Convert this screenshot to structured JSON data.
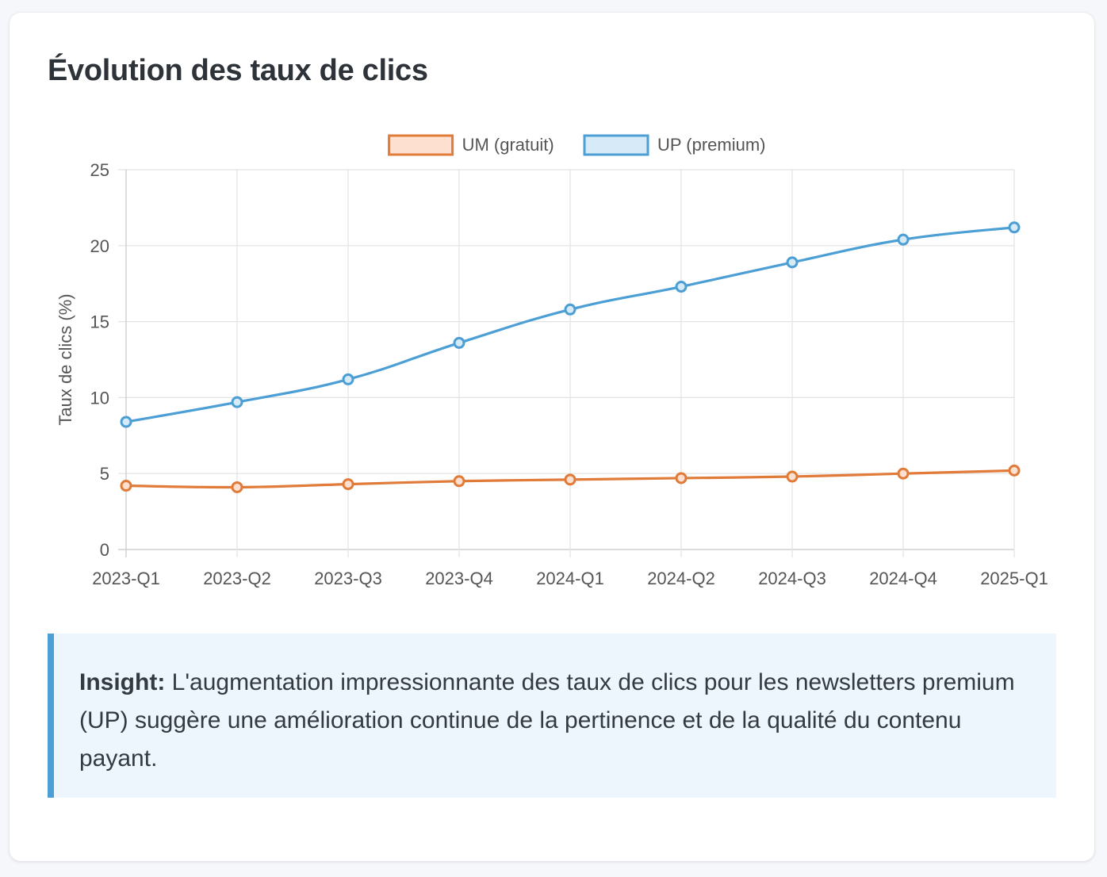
{
  "page": {
    "title": "Évolution des taux de clics"
  },
  "chart_data": {
    "type": "line",
    "title": "",
    "xlabel": "",
    "ylabel": "Taux de clics (%)",
    "ylim": [
      0,
      25
    ],
    "yticks": [
      0,
      5,
      10,
      15,
      20,
      25
    ],
    "grid": true,
    "legend_position": "top-center",
    "categories": [
      "2023-Q1",
      "2023-Q2",
      "2023-Q3",
      "2023-Q4",
      "2024-Q1",
      "2024-Q2",
      "2024-Q3",
      "2024-Q4",
      "2025-Q1"
    ],
    "series": [
      {
        "name": "UM (gratuit)",
        "color": "#e07b39",
        "fill": "#fde0d0",
        "values": [
          4.2,
          4.1,
          4.3,
          4.5,
          4.6,
          4.7,
          4.8,
          5.0,
          5.2
        ]
      },
      {
        "name": "UP (premium)",
        "color": "#4c9fd5",
        "fill": "#d7eaf8",
        "values": [
          8.4,
          9.7,
          11.2,
          13.6,
          15.8,
          17.3,
          18.9,
          20.4,
          21.2
        ]
      }
    ]
  },
  "insight": {
    "label": "Insight:",
    "text": " L'augmentation impressionnante des taux de clics pour les newsletters premium (UP) suggère une amélioration continue de la pertinence et de la qualité du contenu payant."
  }
}
